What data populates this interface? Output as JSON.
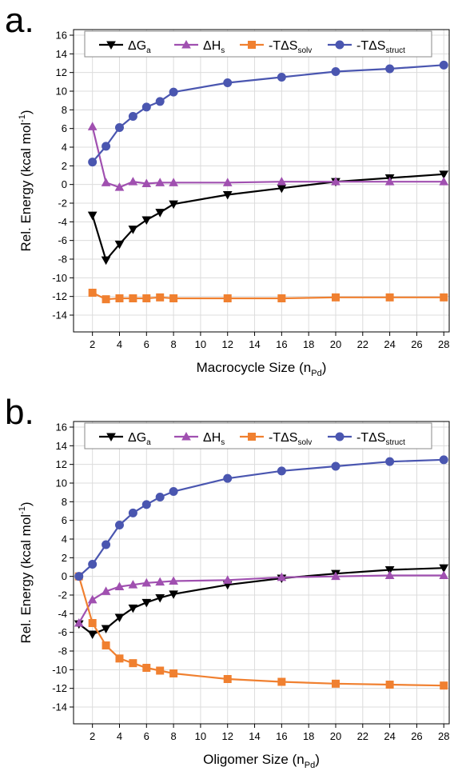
{
  "chart_data": [
    {
      "type": "line",
      "label": "a.",
      "xlabel": "Macrocycle Size (n",
      "xlabel_sub": "Pd",
      "xlabel_end": ")",
      "ylabel": "Rel. Energy (kcal mol",
      "ylabel_sup": "-1",
      "ylabel_end": ")",
      "x": [
        2,
        3,
        4,
        5,
        6,
        7,
        8,
        12,
        16,
        20,
        24,
        28
      ],
      "xlim": [
        0.6,
        28.4
      ],
      "xticks": [
        2,
        4,
        6,
        8,
        10,
        12,
        14,
        16,
        18,
        20,
        22,
        24,
        26,
        28
      ],
      "ylim": [
        -15.8,
        16.6
      ],
      "yticks": [
        -14,
        -12,
        -10,
        -8,
        -6,
        -4,
        -2,
        0,
        2,
        4,
        6,
        8,
        10,
        12,
        14,
        16
      ],
      "grid": true,
      "legend": "top",
      "series": [
        {
          "name": "ΔG",
          "subscript": "a",
          "color": "#000000",
          "marker": "triangle-down",
          "values": [
            -3.3,
            -8.1,
            -6.4,
            -4.8,
            -3.8,
            -3.0,
            -2.1,
            -1.1,
            -0.4,
            0.3,
            0.7,
            1.1
          ]
        },
        {
          "name": "ΔH",
          "subscript": "s",
          "color": "#a050b0",
          "marker": "triangle-up",
          "values": [
            6.2,
            0.2,
            -0.3,
            0.3,
            0.1,
            0.2,
            0.2,
            0.2,
            0.3,
            0.3,
            0.3,
            0.3
          ]
        },
        {
          "name": "-TΔS",
          "subscript": "solv",
          "color": "#f08030",
          "marker": "square",
          "values": [
            -11.6,
            -12.3,
            -12.2,
            -12.2,
            -12.2,
            -12.1,
            -12.2,
            -12.2,
            -12.2,
            -12.1,
            -12.1,
            -12.1
          ]
        },
        {
          "name": "-TΔS",
          "subscript": "struct",
          "color": "#4a56b0",
          "marker": "circle",
          "values": [
            2.4,
            4.1,
            6.1,
            7.3,
            8.3,
            8.9,
            9.9,
            10.9,
            11.5,
            12.1,
            12.4,
            12.8
          ]
        }
      ]
    },
    {
      "type": "line",
      "label": "b.",
      "xlabel": "Oligomer Size (n",
      "xlabel_sub": "Pd",
      "xlabel_end": ")",
      "ylabel": "Rel. Energy (kcal mol",
      "ylabel_sup": "-1",
      "ylabel_end": ")",
      "x": [
        1,
        2,
        3,
        4,
        5,
        6,
        7,
        8,
        12,
        16,
        20,
        24,
        28
      ],
      "xlim": [
        0.6,
        28.4
      ],
      "xticks": [
        2,
        4,
        6,
        8,
        10,
        12,
        14,
        16,
        18,
        20,
        22,
        24,
        26,
        28
      ],
      "ylim": [
        -15.8,
        16.6
      ],
      "yticks": [
        -14,
        -12,
        -10,
        -8,
        -6,
        -4,
        -2,
        0,
        2,
        4,
        6,
        8,
        10,
        12,
        14,
        16
      ],
      "grid": true,
      "legend": "top",
      "series": [
        {
          "name": "ΔG",
          "subscript": "a",
          "color": "#000000",
          "marker": "triangle-down",
          "values": [
            -5.1,
            -6.2,
            -5.6,
            -4.4,
            -3.4,
            -2.8,
            -2.3,
            -1.9,
            -0.9,
            -0.2,
            0.3,
            0.7,
            0.9
          ]
        },
        {
          "name": "ΔH",
          "subscript": "s",
          "color": "#a050b0",
          "marker": "triangle-up",
          "values": [
            -5.0,
            -2.5,
            -1.6,
            -1.1,
            -0.9,
            -0.7,
            -0.6,
            -0.5,
            -0.4,
            -0.1,
            0.0,
            0.1,
            0.1
          ]
        },
        {
          "name": "-TΔS",
          "subscript": "solv",
          "color": "#f08030",
          "marker": "square",
          "values": [
            0.0,
            -5.0,
            -7.4,
            -8.8,
            -9.3,
            -9.8,
            -10.1,
            -10.4,
            -11.0,
            -11.3,
            -11.5,
            -11.6,
            -11.7
          ]
        },
        {
          "name": "-TΔS",
          "subscript": "struct",
          "color": "#4a56b0",
          "marker": "circle",
          "values": [
            0.0,
            1.3,
            3.4,
            5.5,
            6.8,
            7.7,
            8.5,
            9.1,
            10.5,
            11.3,
            11.8,
            12.3,
            12.5
          ]
        }
      ]
    }
  ]
}
